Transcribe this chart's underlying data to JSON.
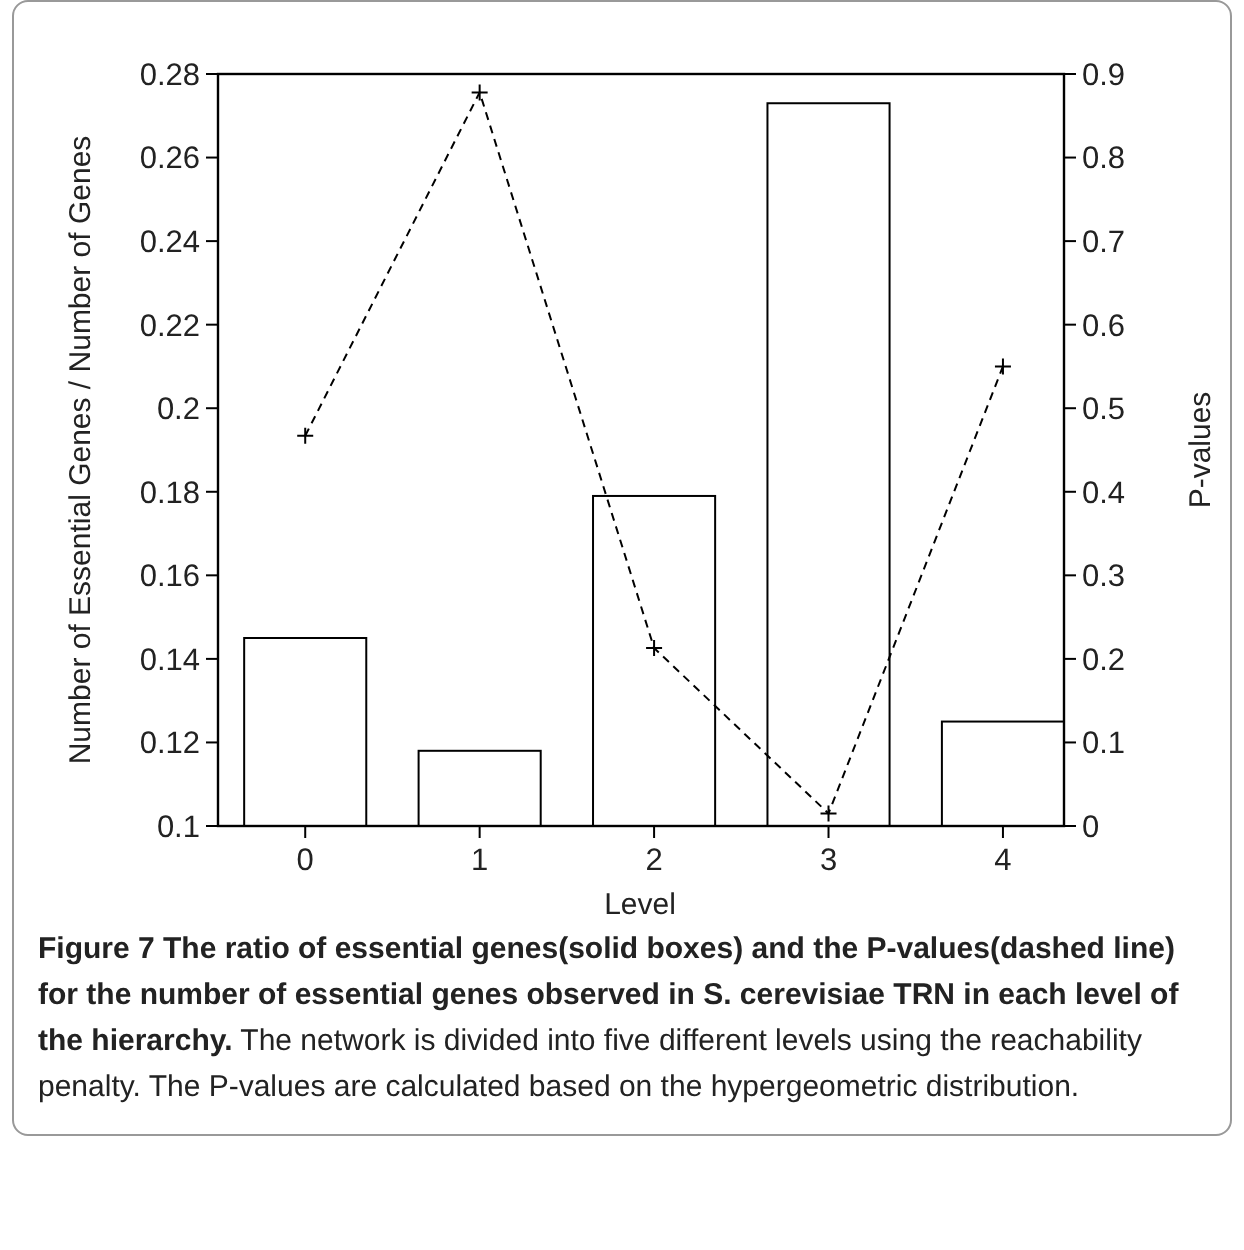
{
  "chart_data": {
    "type": "bar",
    "title": "Figure 7 The ratio of essential genes(solid boxes) and the P-values(dashed line) for the number of essential genes observed in S. cerevisiae TRN in each level of the hierarchy.",
    "annotations": [
      "The network is divided into five different levels using the reachability penalty. The P-values are calculated based on the hypergeometric distribution."
    ],
    "xlabel": "Level",
    "ylabel": "Number of Essential Genes / Number of Genes",
    "y2label": "P-values",
    "x": [
      0,
      1,
      2,
      3,
      4
    ],
    "xlim": [
      -0.5,
      4.35
    ],
    "xticks": [
      0,
      1,
      2,
      3,
      4
    ],
    "ylim": [
      0.1,
      0.28
    ],
    "yticks": [
      0.1,
      0.12,
      0.14,
      0.16,
      0.18,
      0.2,
      0.22,
      0.24,
      0.26,
      0.28
    ],
    "y2lim": [
      0,
      0.9
    ],
    "y2ticks": [
      0,
      0.1,
      0.2,
      0.3,
      0.4,
      0.5,
      0.6,
      0.7,
      0.8,
      0.9
    ],
    "series": [
      {
        "color": "#ffffff",
        "values": [
          0.145,
          0.118,
          0.179,
          0.273,
          0.125
        ]
      },
      {
        "type": "line",
        "axis": "y2",
        "color": "#000000",
        "marker": "cross",
        "line_style": "dashed",
        "values": [
          0.467,
          0.878,
          0.213,
          0.015,
          0.55
        ]
      }
    ],
    "grid": false
  }
}
